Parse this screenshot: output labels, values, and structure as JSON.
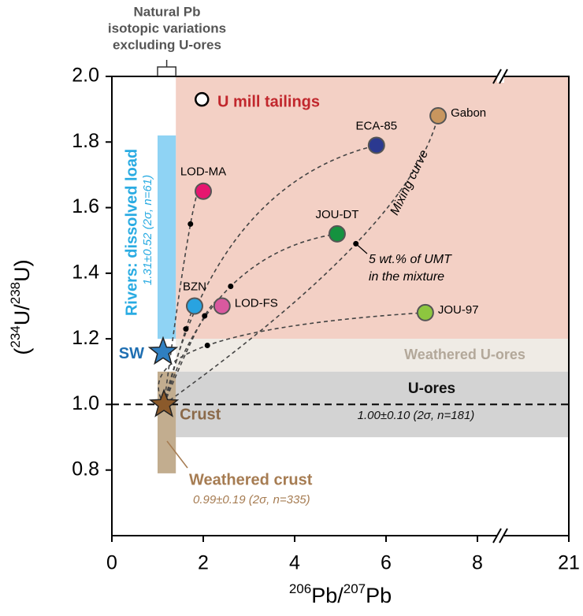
{
  "chart_data": {
    "type": "scatter",
    "x_label": [
      "206",
      "Pb/",
      "207",
      "Pb"
    ],
    "y_label": [
      "(",
      "234",
      "U/",
      "238",
      "U)"
    ],
    "xlim": [
      0,
      21
    ],
    "xticks": [
      0,
      2,
      4,
      6,
      8,
      21
    ],
    "x_break": [
      8.5,
      19.5
    ],
    "ylim": [
      0.6,
      2.0
    ],
    "yticks": [
      0.8,
      {
        "value": 1,
        "label": "1.0"
      },
      1.2,
      1.4,
      1.6,
      1.8,
      {
        "value": 2,
        "label": "2.0"
      }
    ],
    "reference_line": 1,
    "regions": [
      {
        "label": "U mill tailings",
        "x": [
          1.4,
          21
        ],
        "y": [
          1.2,
          2.0
        ],
        "color": "#f3d0c5",
        "text_color": "#c1272d"
      },
      {
        "label": "Weathered U-ores",
        "x": [
          1.4,
          21
        ],
        "y": [
          1.1,
          1.2
        ],
        "color": "#efebe5",
        "text_color": "#b3a89a"
      },
      {
        "label": "U-ores",
        "note": "1.00±0.10 (2σ, n=181)",
        "x": [
          1.4,
          21
        ],
        "y": [
          0.9,
          1.1
        ],
        "color": "#d3d3d3",
        "text_color": "#111111"
      },
      {
        "label": "Rivers: dissolved load",
        "note": "1.31±0.52 (2σ, n=61)",
        "x": [
          1.0,
          1.4
        ],
        "y": [
          1.2,
          1.82
        ],
        "color": "#8fd3f4",
        "text_color": "#29abe2"
      },
      {
        "label": "Weathered crust",
        "note": "0.99±0.19 (2σ, n=335)",
        "x": [
          1.0,
          1.4
        ],
        "y": [
          0.79,
          1.1
        ],
        "color": "#c2ad8f",
        "text_color": "#a67c52"
      }
    ],
    "bracket": {
      "lines": [
        "Natural Pb",
        "isotopic variations",
        "excluding U-ores"
      ],
      "x": [
        1.0,
        1.4
      ]
    },
    "tailings_marker": {
      "x": 1.97,
      "y": 1.93
    },
    "crust": {
      "label": "Crust",
      "x": 1.14,
      "y": 1.0,
      "color": "#8b5a2b"
    },
    "sw": {
      "label": "SW",
      "x": 1.12,
      "y": 1.16,
      "color": "#2f7fc1"
    },
    "samples": [
      {
        "label": "Gabon",
        "x": 7.14,
        "y": 1.88,
        "color": "#c8965e",
        "label_side": "right",
        "mix_x": 5.34,
        "mix_y": 1.49
      },
      {
        "label": "ECA-85",
        "x": 5.79,
        "y": 1.79,
        "color": "#2b3990",
        "label_side": "above",
        "mix_x": null,
        "mix_y": null
      },
      {
        "label": "LOD-MA",
        "x": 2.0,
        "y": 1.65,
        "color": "#e6156f",
        "label_side": "above",
        "mix_x": 1.72,
        "mix_y": 1.55
      },
      {
        "label": "JOU-DT",
        "x": 4.93,
        "y": 1.52,
        "color": "#15923f",
        "label_side": "above",
        "mix_x": 2.6,
        "mix_y": 1.36
      },
      {
        "label": "BZN",
        "x": 1.81,
        "y": 1.3,
        "color": "#29a3e0",
        "label_side": "above",
        "mix_x": 1.62,
        "mix_y": 1.23
      },
      {
        "label": "LOD-FS",
        "x": 2.41,
        "y": 1.3,
        "color": "#d9599f",
        "label_side": "right",
        "mix_x": 2.03,
        "mix_y": 1.27
      },
      {
        "label": "JOU-97",
        "x": 6.86,
        "y": 1.28,
        "color": "#8dc63f",
        "label_side": "right",
        "mix_x": 2.09,
        "mix_y": 1.18
      }
    ],
    "annotations": [
      "Mixing curve",
      "5 wt.% of UMT",
      "in the mixture"
    ]
  }
}
